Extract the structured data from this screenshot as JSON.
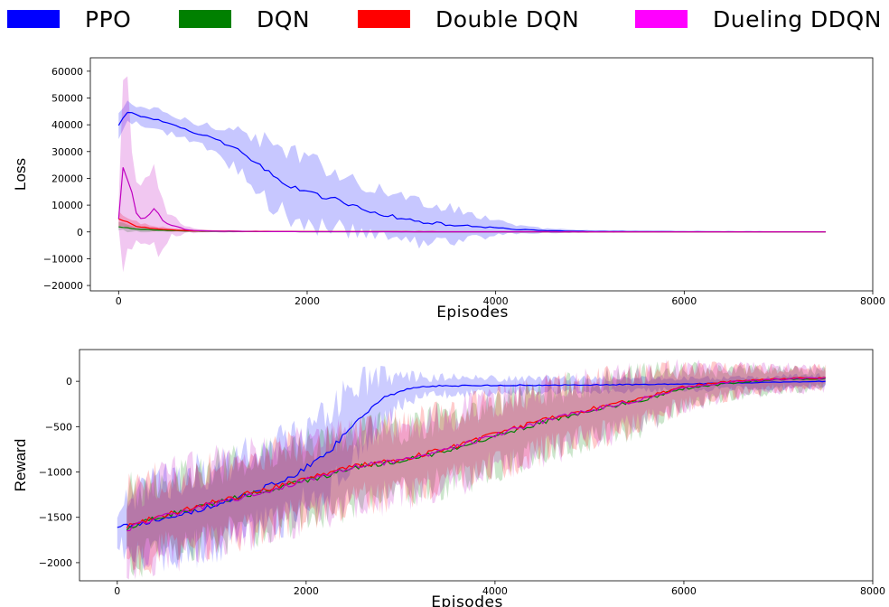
{
  "legend": {
    "items": [
      {
        "label": "PPO",
        "color": "#0000ff"
      },
      {
        "label": "DQN",
        "color": "#008000"
      },
      {
        "label": "Double DQN",
        "color": "#ff0000"
      },
      {
        "label": "Dueling DDQN",
        "color": "#ff00ff"
      }
    ]
  },
  "chart_data": [
    {
      "type": "line",
      "xlabel": "Episodes",
      "ylabel": "Loss",
      "xlim": [
        -300,
        8000
      ],
      "ylim": [
        -22000,
        65000
      ],
      "xticks": [
        0,
        2000,
        4000,
        6000,
        8000
      ],
      "xtick_labels": [
        "0",
        "2000",
        "4000",
        "6000",
        "8000"
      ],
      "yticks": [
        -20000,
        -10000,
        0,
        10000,
        20000,
        30000,
        40000,
        50000,
        60000
      ],
      "ytick_labels": [
        "−20000",
        "−10000",
        "0",
        "10000",
        "20000",
        "30000",
        "40000",
        "50000",
        "60000"
      ],
      "grid": false,
      "series": [
        {
          "name": "PPO",
          "color": "#0000ff",
          "x": [
            0,
            100,
            200,
            400,
            600,
            800,
            1000,
            1200,
            1400,
            1600,
            1800,
            2000,
            2200,
            2400,
            2600,
            2800,
            3000,
            3200,
            3400,
            3600,
            3800,
            4000,
            4200,
            4500,
            5000,
            6000,
            7000,
            7500
          ],
          "y": [
            40000,
            45000,
            43500,
            42000,
            39500,
            37000,
            35000,
            32000,
            27000,
            22000,
            17500,
            15000,
            13000,
            11000,
            8500,
            6500,
            5000,
            3800,
            3000,
            2500,
            2000,
            1500,
            1000,
            500,
            200,
            100,
            50,
            30
          ],
          "band": [
            4000,
            3500,
            3500,
            3500,
            3500,
            3500,
            5000,
            7000,
            9000,
            11000,
            12000,
            12000,
            11500,
            10000,
            9500,
            9000,
            8500,
            8000,
            7000,
            5500,
            4500,
            3000,
            1500,
            800,
            400,
            200,
            150,
            100
          ]
        },
        {
          "name": "DQN",
          "color": "#008000",
          "x": [
            0,
            100,
            200,
            400,
            600,
            800,
            1000,
            2000,
            4000,
            6000,
            7500
          ],
          "y": [
            2000,
            1500,
            1000,
            700,
            500,
            300,
            200,
            100,
            50,
            30,
            20
          ],
          "band": [
            1500,
            1200,
            900,
            600,
            400,
            300,
            200,
            100,
            50,
            30,
            20
          ]
        },
        {
          "name": "Double DQN",
          "color": "#ff0000",
          "x": [
            0,
            100,
            200,
            400,
            600,
            800,
            1000,
            2000,
            4000,
            6000,
            7500
          ],
          "y": [
            5000,
            3500,
            2000,
            1200,
            700,
            400,
            300,
            150,
            80,
            50,
            30
          ],
          "band": [
            2500,
            2000,
            1500,
            1000,
            600,
            400,
            300,
            150,
            80,
            50,
            30
          ]
        },
        {
          "name": "Dueling DDQN",
          "color": "#c000c0",
          "x": [
            0,
            50,
            100,
            150,
            200,
            300,
            400,
            500,
            600,
            700,
            800,
            1000,
            1500,
            2000,
            3000,
            4000,
            6000,
            7500
          ],
          "y": [
            5000,
            25000,
            20000,
            12000,
            5000,
            6000,
            8000,
            3000,
            2000,
            1000,
            500,
            300,
            150,
            100,
            60,
            40,
            30,
            20
          ],
          "band": [
            5000,
            34000,
            30000,
            18000,
            8000,
            12000,
            15000,
            6000,
            3000,
            1500,
            800,
            500,
            200,
            120,
            80,
            50,
            30,
            20
          ]
        }
      ]
    },
    {
      "type": "line",
      "xlabel": "Episodes",
      "ylabel": "Reward",
      "xlim": [
        -400,
        8000
      ],
      "ylim": [
        -2200,
        350
      ],
      "xticks": [
        0,
        2000,
        4000,
        6000,
        8000
      ],
      "xtick_labels": [
        "0",
        "2000",
        "4000",
        "6000",
        "8000"
      ],
      "yticks": [
        -2000,
        -1500,
        -1000,
        -500,
        0
      ],
      "ytick_labels": [
        "−2000",
        "−1500",
        "−1000",
        "−500",
        "0"
      ],
      "grid": false,
      "series": [
        {
          "name": "PPO",
          "color": "#0000ff",
          "x": [
            0,
            200,
            500,
            800,
            1000,
            1200,
            1500,
            1800,
            2000,
            2200,
            2400,
            2600,
            2800,
            3000,
            3200,
            3400,
            3600,
            4000,
            5000,
            6000,
            7000,
            7500
          ],
          "y": [
            -1600,
            -1580,
            -1500,
            -1450,
            -1380,
            -1300,
            -1200,
            -1080,
            -950,
            -820,
            -600,
            -380,
            -200,
            -100,
            -60,
            -50,
            -50,
            -45,
            -40,
            -30,
            -10,
            0
          ],
          "band": [
            200,
            350,
            400,
            420,
            420,
            420,
            420,
            420,
            400,
            420,
            420,
            350,
            250,
            150,
            110,
            100,
            90,
            80,
            70,
            60,
            60,
            60
          ]
        },
        {
          "name": "DQN",
          "color": "#008000",
          "x": [
            100,
            500,
            1000,
            1500,
            2000,
            2500,
            3000,
            3500,
            4000,
            4500,
            5000,
            5500,
            6000,
            6500,
            7000,
            7500
          ],
          "y": [
            -1620,
            -1480,
            -1350,
            -1220,
            -1100,
            -950,
            -880,
            -760,
            -600,
            -450,
            -330,
            -220,
            -80,
            -20,
            20,
            30
          ],
          "band": [
            400,
            400,
            400,
            400,
            380,
            380,
            370,
            360,
            350,
            330,
            300,
            280,
            200,
            140,
            110,
            100
          ]
        },
        {
          "name": "Double DQN",
          "color": "#ff0000",
          "x": [
            100,
            500,
            1000,
            1500,
            2000,
            2500,
            3000,
            3500,
            4000,
            4500,
            5000,
            5500,
            6000,
            6500,
            7000,
            7500
          ],
          "y": [
            -1600,
            -1470,
            -1340,
            -1210,
            -1080,
            -930,
            -860,
            -740,
            -580,
            -430,
            -310,
            -200,
            -60,
            0,
            30,
            40
          ],
          "band": [
            400,
            400,
            400,
            400,
            380,
            380,
            370,
            360,
            350,
            330,
            300,
            280,
            200,
            140,
            110,
            100
          ]
        },
        {
          "name": "Dueling DDQN",
          "color": "#c000c0",
          "x": [
            100,
            500,
            1000,
            1500,
            2000,
            2500,
            3000,
            3500,
            4000,
            4500,
            5000,
            5500,
            6000,
            6500,
            7000,
            7500
          ],
          "y": [
            -1630,
            -1490,
            -1360,
            -1230,
            -1090,
            -940,
            -870,
            -750,
            -590,
            -440,
            -320,
            -210,
            -70,
            -10,
            25,
            35
          ],
          "band": [
            420,
            420,
            420,
            420,
            400,
            400,
            380,
            370,
            360,
            340,
            310,
            290,
            210,
            150,
            120,
            110
          ]
        }
      ]
    }
  ]
}
